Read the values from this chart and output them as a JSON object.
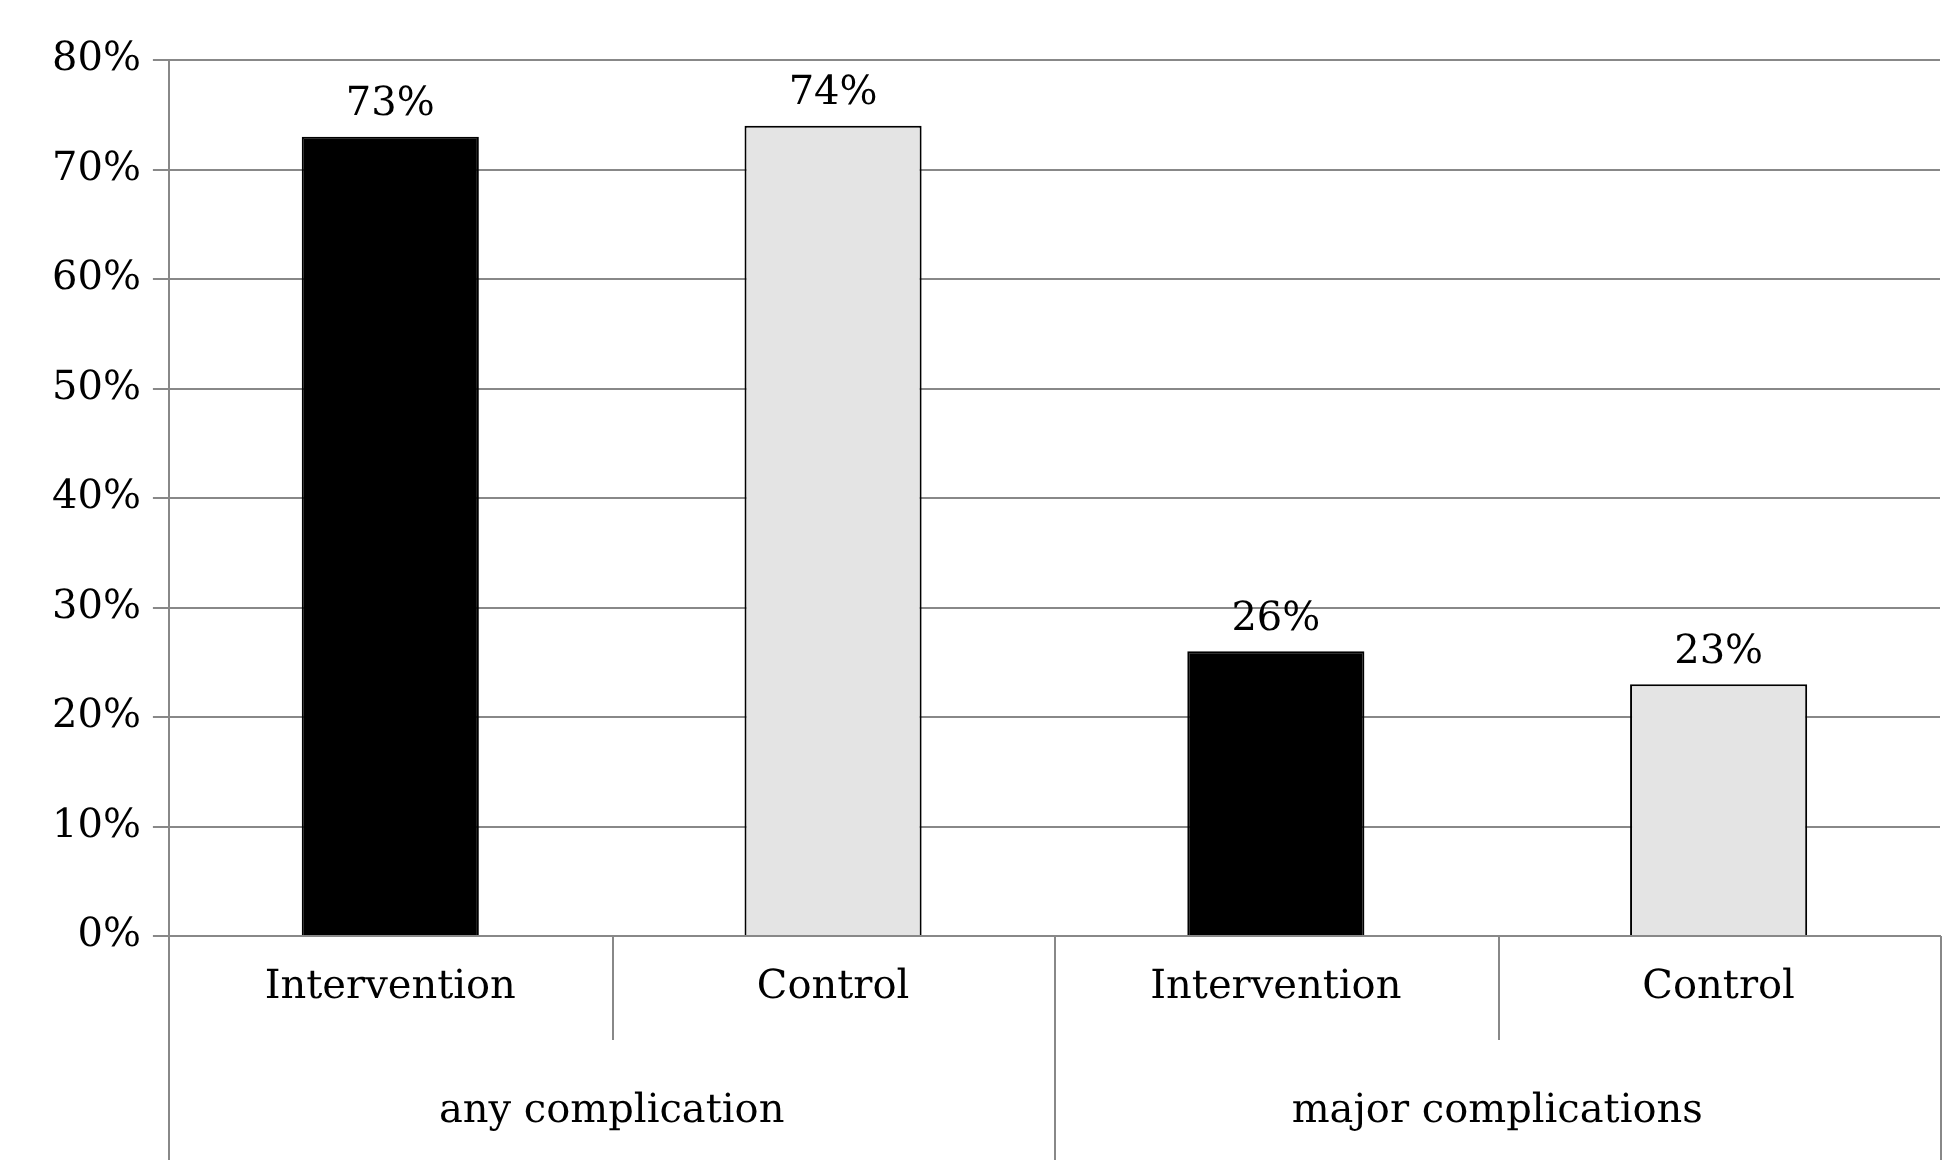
{
  "chart_data": {
    "type": "bar",
    "categories": [
      "Intervention",
      "Control",
      "Intervention",
      "Control"
    ],
    "values": [
      73,
      74,
      26,
      23
    ],
    "colors": [
      "#000000",
      "#e4e4e4",
      "#000000",
      "#e4e4e4"
    ],
    "value_labels": [
      "73%",
      "74%",
      "26%",
      "23%"
    ],
    "ylim": [
      0,
      80
    ],
    "yticks": [
      {
        "value": 0,
        "label": "0%"
      },
      {
        "value": 10,
        "label": "10%"
      },
      {
        "value": 20,
        "label": "20%"
      },
      {
        "value": 30,
        "label": "30%"
      },
      {
        "value": 40,
        "label": "40%"
      },
      {
        "value": 50,
        "label": "50%"
      },
      {
        "value": 60,
        "label": "60%"
      },
      {
        "value": 70,
        "label": "70%"
      },
      {
        "value": 80,
        "label": "80%"
      }
    ],
    "grid": "y",
    "annotations": [
      "any complication",
      "major complications"
    ]
  }
}
